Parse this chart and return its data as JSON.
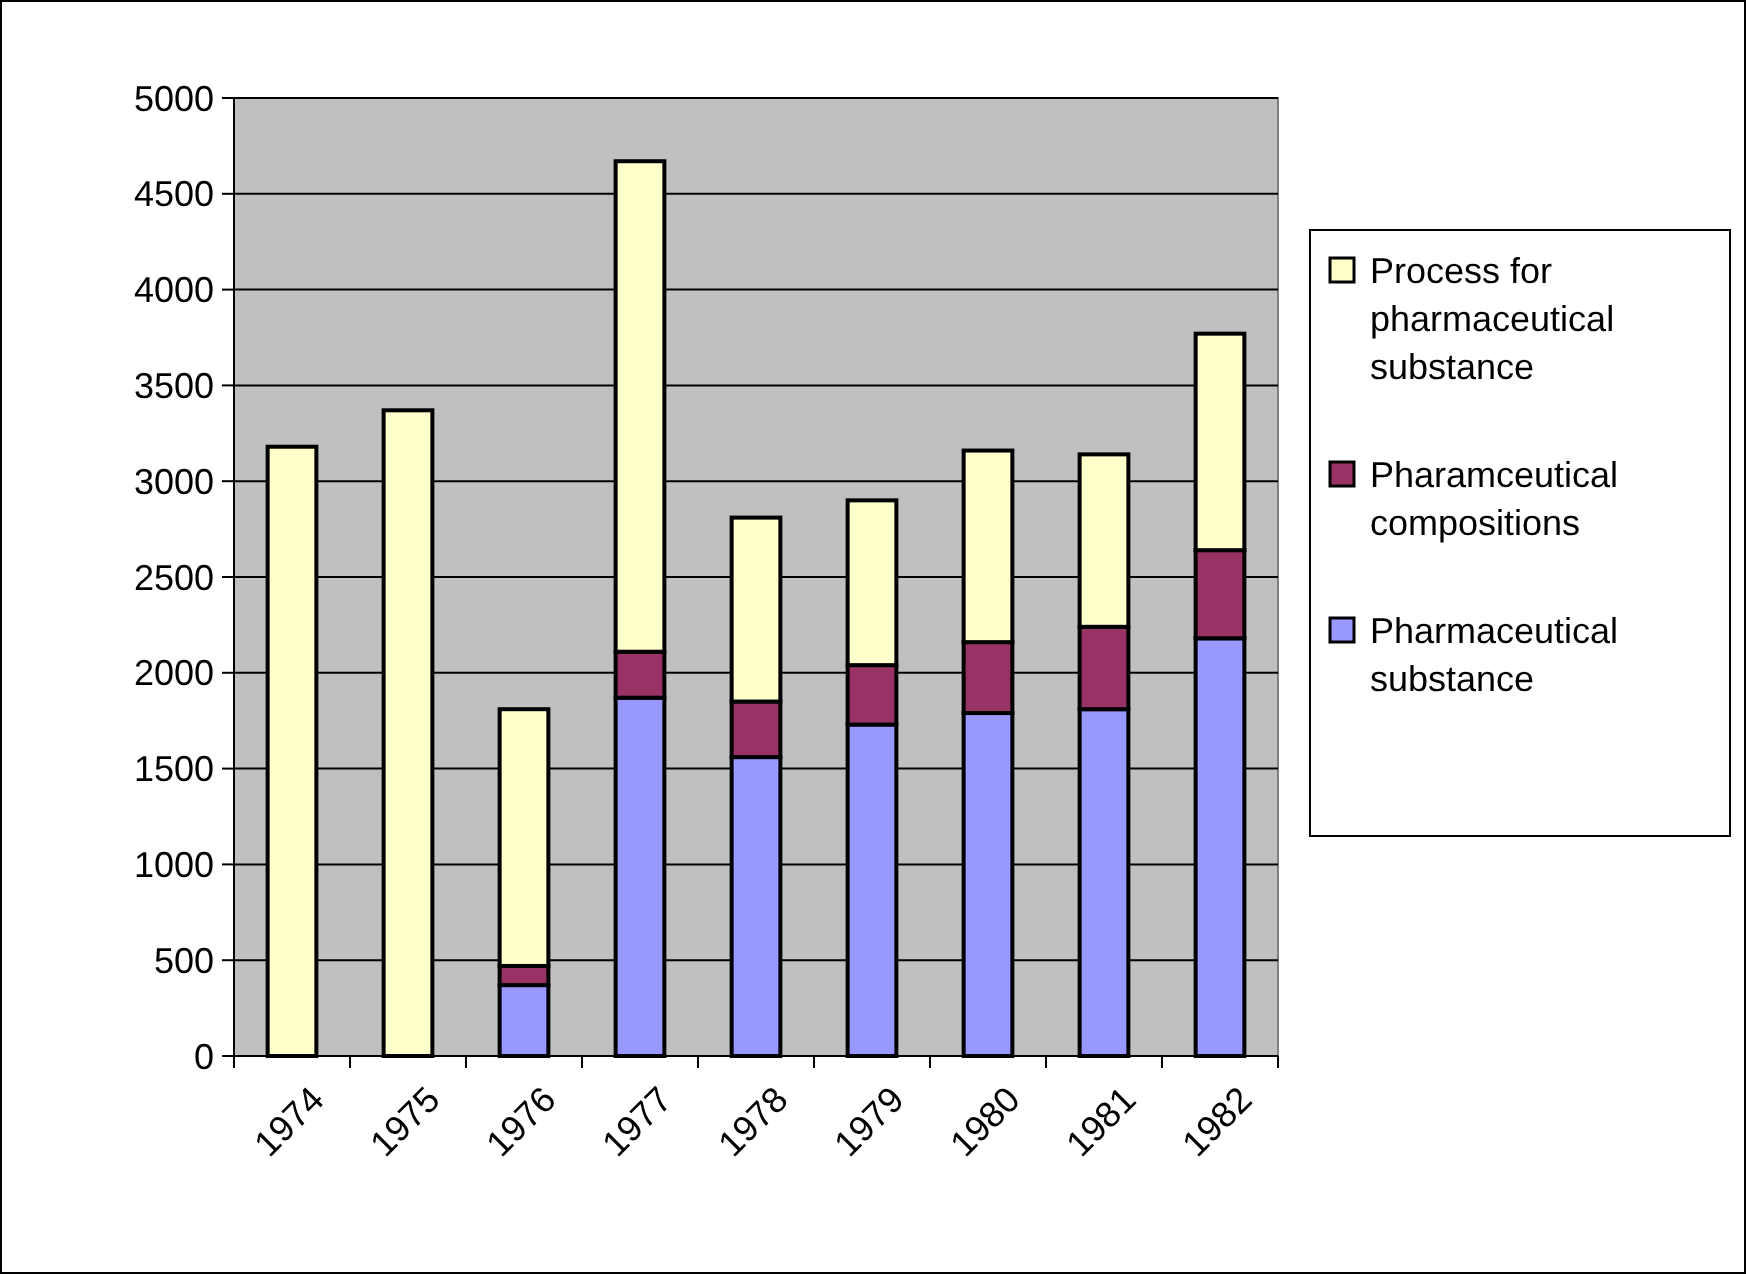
{
  "chart_data": {
    "type": "bar",
    "stacked": true,
    "categories": [
      "1974",
      "1975",
      "1976",
      "1977",
      "1978",
      "1979",
      "1980",
      "1981",
      "1982"
    ],
    "series": [
      {
        "name": "Pharmaceutical substance",
        "color": "#9999ff",
        "values": [
          null,
          null,
          370,
          1870,
          1560,
          1730,
          1790,
          1810,
          2180
        ]
      },
      {
        "name": "Pharamceutical compositions",
        "color": "#993366",
        "values": [
          null,
          null,
          100,
          240,
          290,
          310,
          370,
          430,
          460
        ]
      },
      {
        "name": "Process for pharmaceutical substance",
        "color": "#ffffcc",
        "values": [
          3180,
          3370,
          1340,
          2560,
          960,
          860,
          1000,
          900,
          1130
        ]
      }
    ],
    "ylim": [
      0,
      5000
    ],
    "yticks": [
      0,
      500,
      1000,
      1500,
      2000,
      2500,
      3000,
      3500,
      4000,
      4500,
      5000
    ],
    "grid": "y",
    "legend": "right"
  }
}
